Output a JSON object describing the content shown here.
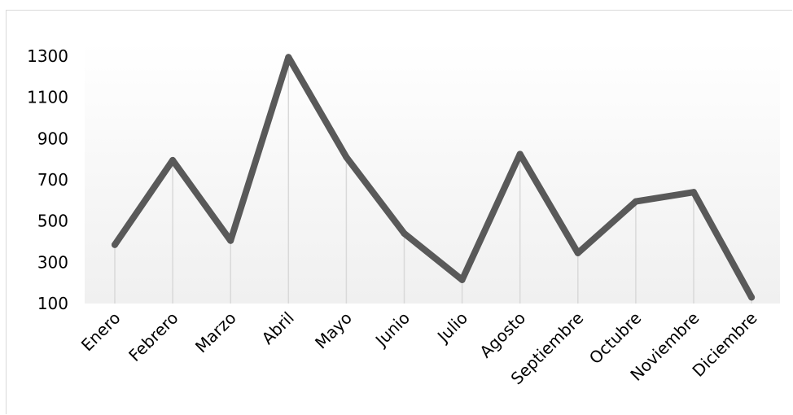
{
  "chart_data": {
    "type": "line",
    "title": "",
    "xlabel": "",
    "ylabel": "",
    "categories": [
      "Enero",
      "Febrero",
      "Marzo",
      "Abril",
      "Mayo",
      "Junio",
      "Julio",
      "Agosto",
      "Septiembre",
      "Octubre",
      "Noviembre",
      "Diciembre"
    ],
    "series": [
      {
        "values": [
          385,
          795,
          405,
          1295,
          810,
          440,
          215,
          825,
          345,
          595,
          640,
          130
        ]
      }
    ],
    "ylim": [
      100,
      1300
    ],
    "yticks": [
      100,
      300,
      500,
      700,
      900,
      1100,
      1300
    ],
    "ytick_labels": [
      "100",
      "300",
      "500",
      "700",
      "900",
      "1100",
      "1300"
    ],
    "grid": "vertical drop lines",
    "legend": "none",
    "colors": {
      "line": "#595959",
      "drop_line": "#d9d9d9",
      "plot_gradient_top": "#ffffff",
      "plot_gradient_bottom": "#f0f0f0"
    }
  }
}
